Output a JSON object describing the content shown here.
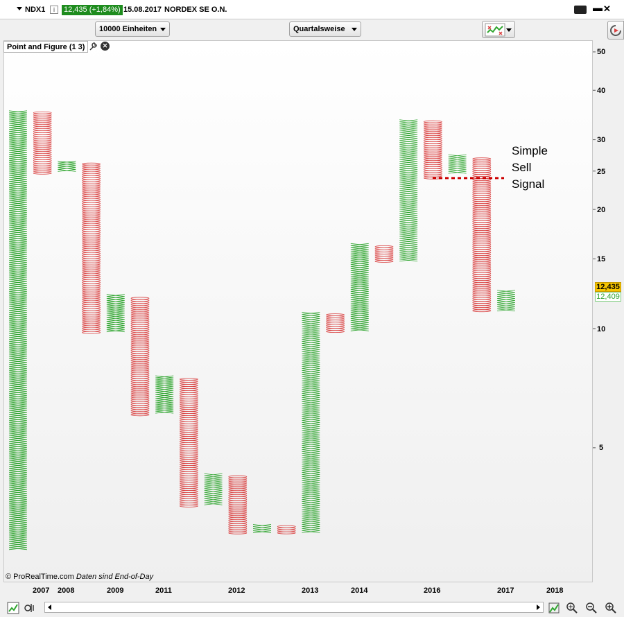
{
  "titlebar": {
    "symbol": "NDX1",
    "price_change": "12,435 (+1,84%)",
    "date": "15.08.2017",
    "instrument_name": "NORDEX SE O.N.",
    "minimize_glyph": "▬",
    "close_glyph": "✕"
  },
  "toolbar": {
    "box_size": "10000 Einheiten",
    "period": "Quartalsweise"
  },
  "panel": {
    "label": "Point and Figure (1 3)",
    "close_glyph": "✕"
  },
  "price_labels": {
    "current": "12,435",
    "last": "12,409",
    "current_color": "#f5c400",
    "last_color": "#2ea52e"
  },
  "annotation": {
    "line1": "Simple",
    "line2": "Sell",
    "line3": "Signal",
    "line_color": "#cc0000"
  },
  "footer": {
    "source": "© ProRealTime.com",
    "note": "Daten sind End-of-Day"
  },
  "colors": {
    "x_column": "#2ea52e",
    "o_column": "#d94040"
  },
  "chart_data": {
    "type": "point-and-figure",
    "y_scale": "log",
    "ylim": [
      2.4,
      56
    ],
    "y_ticks": [
      "50",
      "40",
      "30",
      "25",
      "20",
      "15",
      "10",
      "5"
    ],
    "x_tick_labels": [
      "2007",
      "2008",
      "2009",
      "2011",
      "2012",
      "2013",
      "2014",
      "2016",
      "2017",
      "2018"
    ],
    "series": [
      {
        "kind": "X",
        "low": 2.75,
        "high": 35.5
      },
      {
        "kind": "O",
        "low": 24.5,
        "high": 35.3
      },
      {
        "kind": "X",
        "low": 24.8,
        "high": 26.5
      },
      {
        "kind": "O",
        "low": 9.7,
        "high": 26.2
      },
      {
        "kind": "X",
        "low": 9.8,
        "high": 12.2
      },
      {
        "kind": "O",
        "low": 6.0,
        "high": 12.0
      },
      {
        "kind": "X",
        "low": 6.1,
        "high": 7.6
      },
      {
        "kind": "O",
        "low": 3.55,
        "high": 7.5
      },
      {
        "kind": "X",
        "low": 3.6,
        "high": 4.3
      },
      {
        "kind": "O",
        "low": 3.02,
        "high": 4.25
      },
      {
        "kind": "X",
        "low": 3.05,
        "high": 3.2
      },
      {
        "kind": "O",
        "low": 3.04,
        "high": 3.18
      },
      {
        "kind": "X",
        "low": 3.05,
        "high": 11.0
      },
      {
        "kind": "O",
        "low": 9.8,
        "high": 10.9
      },
      {
        "kind": "X",
        "low": 9.9,
        "high": 16.4
      },
      {
        "kind": "O",
        "low": 14.7,
        "high": 16.2
      },
      {
        "kind": "X",
        "low": 14.8,
        "high": 33.7
      },
      {
        "kind": "O",
        "low": 24.0,
        "high": 33.5
      },
      {
        "kind": "X",
        "low": 24.6,
        "high": 27.5
      },
      {
        "kind": "O",
        "low": 11.0,
        "high": 27.0
      },
      {
        "kind": "X",
        "low": 11.1,
        "high": 12.5
      }
    ],
    "sell_signal_level": 24.0
  }
}
